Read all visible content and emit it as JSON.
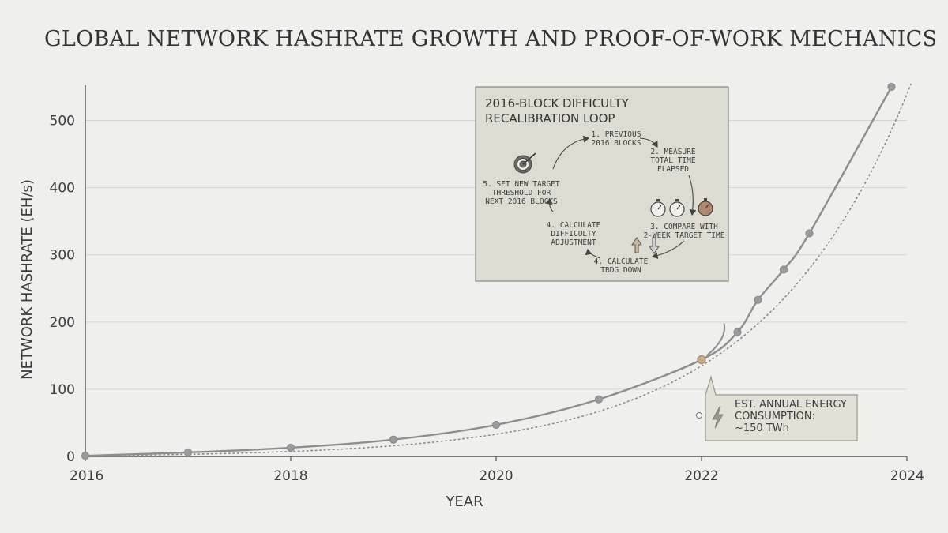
{
  "title": "GLOBAL NETWORK HASHRATE GROWTH AND PROOF-OF-WORK MECHANICS",
  "chart_data": {
    "type": "line",
    "xlabel": "YEAR",
    "ylabel": "NETWORK HASHRATE (EH/s)",
    "xlim": [
      2016,
      2024
    ],
    "ylim": [
      0,
      550
    ],
    "x_ticks": [
      "2016",
      "2018",
      "2020",
      "2022",
      "2024"
    ],
    "y_ticks": [
      "0",
      "100",
      "200",
      "300",
      "400",
      "500"
    ],
    "grid": true,
    "series": [
      {
        "style": "solid",
        "color": "#8e8e8e",
        "points": [
          {
            "x": 2016.0,
            "y": 1
          },
          {
            "x": 2017.0,
            "y": 6
          },
          {
            "x": 2018.0,
            "y": 13
          },
          {
            "x": 2019.0,
            "y": 25
          },
          {
            "x": 2020.0,
            "y": 47
          },
          {
            "x": 2021.0,
            "y": 85
          },
          {
            "x": 2022.0,
            "y": 144
          },
          {
            "x": 2022.35,
            "y": 185
          },
          {
            "x": 2022.55,
            "y": 233
          },
          {
            "x": 2022.8,
            "y": 278
          },
          {
            "x": 2023.05,
            "y": 332
          },
          {
            "x": 2023.85,
            "y": 550
          }
        ]
      },
      {
        "style": "dotted",
        "color": "#8a8a8a",
        "trend": "exponential"
      }
    ],
    "highlight": {
      "x": 2022.0,
      "y": 144,
      "color": "#c8a98a"
    },
    "callout": {
      "lines": [
        "EST. ANNUAL ENERGY",
        "CONSUMPTION:",
        "~150 TWh"
      ],
      "icon": "lightning-bolt-icon"
    },
    "inset": {
      "title_lines": [
        "2016-BLOCK DIFFICULTY",
        "RECALIBRATION LOOP"
      ],
      "steps": [
        {
          "lines": [
            "1. PREVIOUS",
            "2016 BLOCKS"
          ]
        },
        {
          "lines": [
            "2. MEASURE",
            "TOTAL TIME",
            "ELAPSED"
          ]
        },
        {
          "lines": [
            "3. COMPARE WITH",
            "2-WEEK TARGET TIME"
          ]
        },
        {
          "lines": [
            "4. CALCULATE",
            "TBDG DOWN"
          ]
        },
        {
          "lines": [
            "4. CALCULATE",
            "DIFFICULTY",
            "ADJUSTMENT"
          ]
        },
        {
          "lines": [
            "5. SET NEW TARGET",
            "THRESHOLD FOR",
            "NEXT 2016 BLOCKS"
          ]
        }
      ],
      "icons": [
        "target-icon",
        "stopwatch-icon",
        "up-down-arrows-icon"
      ]
    }
  }
}
